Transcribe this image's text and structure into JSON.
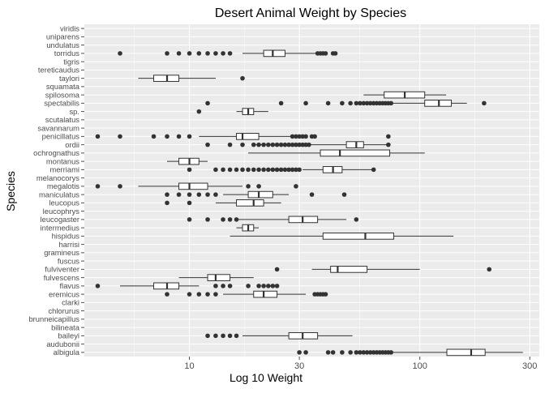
{
  "chart_data": {
    "type": "boxplot",
    "orientation": "horizontal",
    "title": "Desert Animal Weight by Species",
    "xlabel": "Log 10 Weight",
    "ylabel": "Species",
    "x_scale": "log10",
    "xlim": [
      3.5,
      330
    ],
    "x_ticks": [
      10,
      30,
      100,
      300
    ],
    "x_tick_labels": [
      "10",
      "30",
      "100",
      "300"
    ],
    "grid": true,
    "panel_background": "#EBEBEB",
    "gridline_color": "#FFFFFF",
    "box_fill": "#FFFFFF",
    "line_color": "#333333",
    "point_color": "#333333",
    "title_color": "#000000",
    "label_color": "#4D4D4D",
    "categories": [
      "viridis",
      "uniparens",
      "undulatus",
      "torridus",
      "tigris",
      "tereticaudus",
      "taylori",
      "squamata",
      "spilosoma",
      "spectabilis",
      "sp.",
      "scutalatus",
      "savannarum",
      "penicillatus",
      "ordii",
      "ochrognathus",
      "montanus",
      "merriami",
      "melanocorys",
      "megalotis",
      "maniculatus",
      "leucopus",
      "leucophrys",
      "leucogaster",
      "intermedius",
      "hispidus",
      "harrisi",
      "gramineus",
      "fuscus",
      "fulviventer",
      "fulvescens",
      "flavus",
      "eremicus",
      "clarki",
      "chlorurus",
      "brunneicapillus",
      "bilineata",
      "baileyi",
      "audubonii",
      "albigula"
    ],
    "boxes": [
      {
        "species": "viridis",
        "stats": null,
        "outliers": []
      },
      {
        "species": "uniparens",
        "stats": null,
        "outliers": []
      },
      {
        "species": "undulatus",
        "stats": null,
        "outliers": []
      },
      {
        "species": "torridus",
        "stats": {
          "min": 17,
          "q1": 21,
          "median": 23,
          "q3": 26,
          "max": 36
        },
        "outliers": [
          5,
          8,
          9,
          10,
          11,
          12,
          13,
          14,
          15,
          36,
          37,
          38,
          39,
          42,
          43
        ]
      },
      {
        "species": "tigris",
        "stats": null,
        "outliers": []
      },
      {
        "species": "tereticaudus",
        "stats": null,
        "outliers": []
      },
      {
        "species": "taylori",
        "stats": {
          "min": 6,
          "q1": 7,
          "median": 8,
          "q3": 9,
          "max": 13
        },
        "outliers": [
          17
        ]
      },
      {
        "species": "squamata",
        "stats": null,
        "outliers": []
      },
      {
        "species": "spilosoma",
        "stats": {
          "min": 57,
          "q1": 70,
          "median": 86,
          "q3": 105,
          "max": 130
        },
        "outliers": []
      },
      {
        "species": "spectabilis",
        "stats": {
          "min": 76,
          "q1": 105,
          "median": 121,
          "q3": 137,
          "max": 160
        },
        "outliers": [
          12,
          25,
          32,
          40,
          46,
          50,
          53,
          55,
          57,
          59,
          61,
          63,
          65,
          67,
          69,
          71,
          73,
          75,
          190
        ]
      },
      {
        "species": "sp.",
        "stats": {
          "min": 16,
          "q1": 17,
          "median": 18,
          "q3": 19,
          "max": 22
        },
        "outliers": [
          11
        ]
      },
      {
        "species": "scutalatus",
        "stats": null,
        "outliers": []
      },
      {
        "species": "savannarum",
        "stats": null,
        "outliers": []
      },
      {
        "species": "penicillatus",
        "stats": {
          "min": 11,
          "q1": 16,
          "median": 17,
          "q3": 20,
          "max": 28
        },
        "outliers": [
          4,
          5,
          7,
          8,
          9,
          10,
          28,
          29,
          30,
          31,
          32,
          34,
          35,
          73
        ]
      },
      {
        "species": "ordii",
        "stats": {
          "min": 19,
          "q1": 48,
          "median": 53,
          "q3": 57,
          "max": 72
        },
        "outliers": [
          12,
          15,
          17,
          19,
          20,
          21,
          22,
          23,
          24,
          25,
          26,
          27,
          28,
          29,
          30,
          31,
          32,
          33,
          73
        ]
      },
      {
        "species": "ochrognathus",
        "stats": {
          "min": 18,
          "q1": 37,
          "median": 45,
          "q3": 74,
          "max": 105
        },
        "outliers": []
      },
      {
        "species": "montanus",
        "stats": {
          "min": 8,
          "q1": 9,
          "median": 10,
          "q3": 11,
          "max": 12
        },
        "outliers": []
      },
      {
        "species": "merriami",
        "stats": {
          "min": 31,
          "q1": 38,
          "median": 42,
          "q3": 46,
          "max": 62
        },
        "outliers": [
          10,
          13,
          14,
          15,
          16,
          17,
          18,
          19,
          20,
          21,
          22,
          23,
          24,
          25,
          26,
          27,
          28,
          29,
          30,
          63
        ]
      },
      {
        "species": "melanocorys",
        "stats": null,
        "outliers": []
      },
      {
        "species": "megalotis",
        "stats": {
          "min": 6,
          "q1": 9,
          "median": 10,
          "q3": 12,
          "max": 17
        },
        "outliers": [
          4,
          5,
          18,
          20,
          29
        ]
      },
      {
        "species": "maniculatus",
        "stats": {
          "min": 14,
          "q1": 18,
          "median": 20,
          "q3": 23,
          "max": 27
        },
        "outliers": [
          8,
          9,
          10,
          11,
          12,
          13,
          34,
          47
        ]
      },
      {
        "species": "leucopus",
        "stats": {
          "min": 13,
          "q1": 16,
          "median": 19,
          "q3": 21,
          "max": 25
        },
        "outliers": [
          8,
          10
        ]
      },
      {
        "species": "leucophrys",
        "stats": null,
        "outliers": []
      },
      {
        "species": "leucogaster",
        "stats": {
          "min": 16,
          "q1": 27,
          "median": 31,
          "q3": 36,
          "max": 48
        },
        "outliers": [
          10,
          12,
          14,
          15,
          16,
          53
        ]
      },
      {
        "species": "intermedius",
        "stats": {
          "min": 16,
          "q1": 17,
          "median": 18,
          "q3": 19,
          "max": 20
        },
        "outliers": []
      },
      {
        "species": "hispidus",
        "stats": {
          "min": 15,
          "q1": 38,
          "median": 58,
          "q3": 77,
          "max": 140
        },
        "outliers": []
      },
      {
        "species": "harrisi",
        "stats": null,
        "outliers": []
      },
      {
        "species": "gramineus",
        "stats": null,
        "outliers": []
      },
      {
        "species": "fuscus",
        "stats": null,
        "outliers": []
      },
      {
        "species": "fulviventer",
        "stats": {
          "min": 34,
          "q1": 41,
          "median": 44,
          "q3": 59,
          "max": 100
        },
        "outliers": [
          24,
          200
        ]
      },
      {
        "species": "fulvescens",
        "stats": {
          "min": 9,
          "q1": 12,
          "median": 13,
          "q3": 15,
          "max": 19
        },
        "outliers": []
      },
      {
        "species": "flavus",
        "stats": {
          "min": 5,
          "q1": 7,
          "median": 8,
          "q3": 9,
          "max": 11
        },
        "outliers": [
          4,
          13,
          14,
          15,
          18,
          20,
          21,
          22,
          23,
          24
        ]
      },
      {
        "species": "eremicus",
        "stats": {
          "min": 14,
          "q1": 19,
          "median": 21,
          "q3": 24,
          "max": 32
        },
        "outliers": [
          8,
          10,
          11,
          12,
          13,
          35,
          36,
          37,
          38,
          39
        ]
      },
      {
        "species": "clarki",
        "stats": null,
        "outliers": []
      },
      {
        "species": "chlorurus",
        "stats": null,
        "outliers": []
      },
      {
        "species": "brunneicapillus",
        "stats": null,
        "outliers": []
      },
      {
        "species": "bilineata",
        "stats": null,
        "outliers": []
      },
      {
        "species": "baileyi",
        "stats": {
          "min": 17,
          "q1": 27,
          "median": 31,
          "q3": 36,
          "max": 51
        },
        "outliers": [
          12,
          13,
          14,
          15,
          16
        ]
      },
      {
        "species": "audubonii",
        "stats": null,
        "outliers": []
      },
      {
        "species": "albigula",
        "stats": {
          "min": 75,
          "q1": 131,
          "median": 167,
          "q3": 192,
          "max": 280
        },
        "outliers": [
          30,
          32,
          40,
          42,
          46,
          50,
          53,
          55,
          57,
          59,
          61,
          63,
          65,
          67,
          69,
          71,
          73,
          75
        ]
      }
    ]
  }
}
